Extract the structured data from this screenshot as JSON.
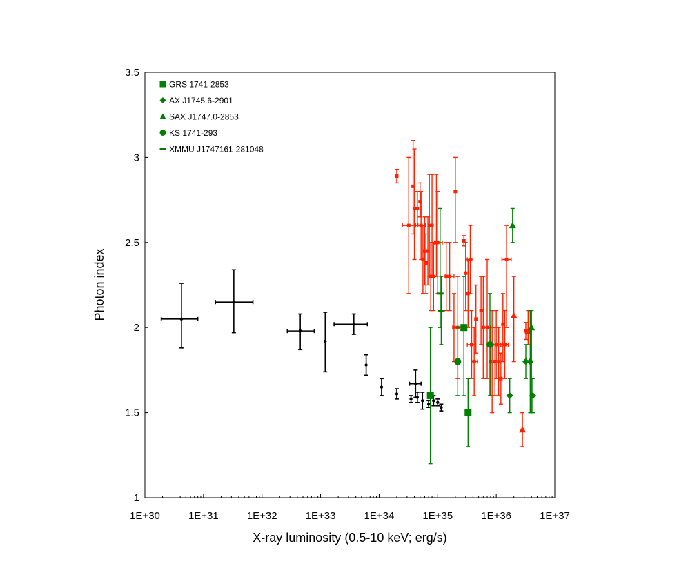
{
  "chart_data": {
    "type": "scatter",
    "title": "",
    "xlabel": "X-ray luminosity (0.5-10 keV; erg/s)",
    "ylabel": "Photon index",
    "x_scale": "log",
    "xlim": [
      1e+30,
      1e+37
    ],
    "ylim": [
      1,
      3.5
    ],
    "x_tick_labels": [
      "1E+30",
      "1E+31",
      "1E+32",
      "1E+33",
      "1E+34",
      "1E+35",
      "1E+36",
      "1E+37"
    ],
    "y_tick_labels": [
      "1",
      "1.5",
      "2",
      "2.5",
      "3",
      "3.5"
    ],
    "grid": false,
    "legend_position": "top-left",
    "colors": {
      "black": "#000000",
      "red": "#ff2200",
      "green": "#008000"
    },
    "legend": [
      {
        "label": "GRS 1741-2853",
        "marker": "square"
      },
      {
        "label": "AX J1745.6-2901",
        "marker": "diamond"
      },
      {
        "label": "SAX J1747.0-2853",
        "marker": "triangle"
      },
      {
        "label": "KS 1741-293",
        "marker": "circle"
      },
      {
        "label": "XMMU J1747161-281048",
        "marker": "dash"
      }
    ],
    "series": [
      {
        "color": "black",
        "marker": "dot",
        "points": [
          {
            "x": 4.2e+30,
            "y": 2.05,
            "xerr": [
              1.9e+30,
              8e+30
            ],
            "yerr": [
              1.88,
              2.26
            ]
          },
          {
            "x": 3.3e+31,
            "y": 2.15,
            "xerr": [
              1.6e+31,
              7e+31
            ],
            "yerr": [
              1.97,
              2.34
            ]
          },
          {
            "x": 4.5e+32,
            "y": 1.98,
            "xerr": [
              2.7e+32,
              7.8e+32
            ],
            "yerr": [
              1.87,
              2.08
            ]
          },
          {
            "x": 1.2e+33,
            "y": 1.92,
            "yerr": [
              1.74,
              2.09
            ]
          },
          {
            "x": 3.7e+33,
            "y": 2.02,
            "xerr": [
              1.7e+33,
              6.3e+33
            ],
            "yerr": [
              1.96,
              2.08
            ]
          },
          {
            "x": 6e+33,
            "y": 1.78,
            "yerr": [
              1.72,
              1.84
            ]
          },
          {
            "x": 1.1e+34,
            "y": 1.65,
            "yerr": [
              1.6,
              1.7
            ]
          },
          {
            "x": 2e+34,
            "y": 1.61,
            "yerr": [
              1.58,
              1.64
            ]
          },
          {
            "x": 3.5e+34,
            "y": 1.58,
            "yerr": [
              1.56,
              1.6
            ]
          },
          {
            "x": 4.2e+34,
            "y": 1.67,
            "xerr": [
              3.3e+34,
              5.2e+34
            ],
            "yerr": [
              1.59,
              1.75
            ]
          },
          {
            "x": 4.5e+34,
            "y": 1.59,
            "yerr": [
              1.56,
              1.62
            ]
          },
          {
            "x": 5.5e+34,
            "y": 1.57,
            "yerr": [
              1.52,
              1.62
            ]
          },
          {
            "x": 7e+34,
            "y": 1.55,
            "yerr": [
              1.53,
              1.57
            ]
          },
          {
            "x": 8.5e+34,
            "y": 1.57,
            "yerr": [
              1.54,
              1.6
            ]
          },
          {
            "x": 1e+35,
            "y": 1.56,
            "yerr": [
              1.54,
              1.58
            ]
          },
          {
            "x": 1.15e+35,
            "y": 1.53,
            "yerr": [
              1.51,
              1.55
            ]
          }
        ]
      },
      {
        "color": "red",
        "marker": "small-square",
        "points": [
          {
            "x": 2e+34,
            "y": 2.89,
            "yerr": [
              2.85,
              2.93
            ]
          },
          {
            "x": 3.2e+34,
            "y": 2.6,
            "xerr": [
              2.5e+34,
              4.2e+34
            ],
            "yerr": [
              2.2,
              3.0
            ]
          },
          {
            "x": 3.8e+34,
            "y": 2.83,
            "yerr": [
              2.55,
              3.1
            ]
          },
          {
            "x": 4e+34,
            "y": 2.7,
            "yerr": [
              2.4,
              3.05
            ]
          },
          {
            "x": 4.5e+34,
            "y": 2.7,
            "yerr": [
              2.6,
              2.8
            ]
          },
          {
            "x": 5e+34,
            "y": 2.74,
            "yerr": [
              2.65,
              2.85
            ]
          },
          {
            "x": 5.2e+34,
            "y": 2.6,
            "xerr": [
              4.6e+34,
              6.2e+34
            ],
            "yerr": [
              2.4,
              2.8
            ]
          },
          {
            "x": 5.6e+34,
            "y": 2.4,
            "yerr": [
              2.2,
              2.6
            ]
          },
          {
            "x": 6e+34,
            "y": 2.45,
            "yerr": [
              2.25,
              2.65
            ]
          },
          {
            "x": 6.3e+34,
            "y": 2.38,
            "yerr": [
              2.2,
              2.55
            ]
          },
          {
            "x": 6.8e+34,
            "y": 2.45,
            "yerr": [
              2.25,
              2.65
            ]
          },
          {
            "x": 7.2e+34,
            "y": 2.6,
            "yerr": [
              2.3,
              2.9
            ]
          },
          {
            "x": 7.6e+34,
            "y": 2.3,
            "yerr": [
              2.1,
              2.5
            ]
          },
          {
            "x": 8e+34,
            "y": 2.6,
            "yerr": [
              2.3,
              2.9
            ]
          },
          {
            "x": 8.5e+34,
            "y": 2.3,
            "yerr": [
              2.1,
              2.5
            ]
          },
          {
            "x": 9.5e+34,
            "y": 2.5,
            "yerr": [
              2.3,
              2.9
            ]
          },
          {
            "x": 1e+35,
            "y": 2.5,
            "xerr": [
              8.8e+34,
              1.2e+35
            ],
            "yerr": [
              2.2,
              2.8
            ]
          },
          {
            "x": 1.4e+35,
            "y": 2.3,
            "yerr": [
              2.1,
              2.5
            ]
          },
          {
            "x": 1.6e+35,
            "y": 2.3,
            "xerr": [
              1.35e+35,
              1.9e+35
            ],
            "yerr": [
              2.1,
              2.5
            ]
          },
          {
            "x": 1.9e+35,
            "y": 2.0,
            "yerr": [
              1.8,
              2.2
            ]
          },
          {
            "x": 2e+35,
            "y": 2.8,
            "yerr": [
              2.5,
              3.0
            ]
          },
          {
            "x": 2.2e+35,
            "y": 2.0,
            "xerr": [
              1.8e+35,
              2.6e+35
            ],
            "yerr": [
              1.7,
              2.3
            ]
          },
          {
            "x": 2.8e+35,
            "y": 2.51,
            "yerr": [
              2.48,
              2.54
            ]
          },
          {
            "x": 3e+35,
            "y": 2.32,
            "yerr": [
              2.1,
              2.5
            ]
          },
          {
            "x": 3.3e+35,
            "y": 2.2,
            "yerr": [
              2.0,
              2.4
            ]
          },
          {
            "x": 3.6e+35,
            "y": 2.4,
            "xerr": [
              3.2e+35,
              4e+35
            ],
            "yerr": [
              2.2,
              2.6
            ]
          },
          {
            "x": 3.8e+35,
            "y": 1.9,
            "xerr": [
              3.2e+35,
              4.4e+35
            ],
            "yerr": [
              1.7,
              2.1
            ]
          },
          {
            "x": 4.2e+35,
            "y": 1.8,
            "xerr": [
              3.8e+35,
              4.8e+35
            ],
            "yerr": [
              1.6,
              2.0
            ]
          },
          {
            "x": 4.5e+35,
            "y": 2.05,
            "yerr": [
              1.85,
              2.25
            ]
          },
          {
            "x": 5.5e+35,
            "y": 2.1,
            "yerr": [
              1.9,
              2.3
            ]
          },
          {
            "x": 6e+35,
            "y": 2.0,
            "yerr": [
              1.7,
              2.3
            ]
          },
          {
            "x": 7e+35,
            "y": 2.0,
            "xerr": [
              6e+35,
              8e+35
            ],
            "yerr": [
              1.7,
              2.4
            ]
          },
          {
            "x": 8e+35,
            "y": 1.8,
            "yerr": [
              1.6,
              2.0
            ]
          },
          {
            "x": 8.5e+35,
            "y": 1.9,
            "yerr": [
              1.5,
              2.1
            ]
          },
          {
            "x": 9.5e+35,
            "y": 1.8,
            "yerr": [
              1.6,
              2.0
            ]
          },
          {
            "x": 1e+36,
            "y": 1.9,
            "xerr": [
              8.5e+35,
              1.2e+36
            ],
            "yerr": [
              1.7,
              2.1
            ]
          },
          {
            "x": 1.1e+36,
            "y": 1.8,
            "yerr": [
              1.6,
              2.0
            ]
          },
          {
            "x": 1.2e+36,
            "y": 1.7,
            "yerr": [
              1.55,
              1.85
            ]
          },
          {
            "x": 1.3e+36,
            "y": 2.02,
            "yerr": [
              1.8,
              2.2
            ]
          },
          {
            "x": 1.4e+36,
            "y": 1.9,
            "xerr": [
              1.2e+36,
              1.6e+36
            ],
            "yerr": [
              1.7,
              2.1
            ]
          },
          {
            "x": 1.5e+36,
            "y": 2.4,
            "xerr": [
              1.25e+36,
              1.8e+36
            ],
            "yerr": [
              2.0,
              2.6
            ]
          },
          {
            "x": 3.2e+36,
            "y": 1.98,
            "yerr": [
              1.93,
              2.03
            ]
          }
        ]
      },
      {
        "color": "red",
        "marker": "triangle",
        "points": [
          {
            "x": 2e+36,
            "y": 2.07,
            "yerr": [
              1.8,
              2.3
            ]
          },
          {
            "x": 2.8e+36,
            "y": 1.4,
            "yerr": [
              1.3,
              1.5
            ]
          },
          {
            "x": 3.5e+36,
            "y": 1.98,
            "yerr": [
              1.9,
              2.1
            ]
          }
        ]
      },
      {
        "color": "green",
        "marker": "square",
        "label": "GRS 1741-2853",
        "points": [
          {
            "x": 7.5e+34,
            "y": 1.6,
            "yerr": [
              1.2,
              2.0
            ]
          },
          {
            "x": 2.8e+35,
            "y": 2.0,
            "yerr": [
              1.6,
              2.3
            ]
          },
          {
            "x": 3.3e+35,
            "y": 1.5,
            "yerr": [
              1.3,
              1.7
            ]
          }
        ]
      },
      {
        "color": "green",
        "marker": "diamond",
        "label": "AX J1745.6-2901",
        "points": [
          {
            "x": 1.7e+36,
            "y": 1.6,
            "yerr": [
              1.5,
              1.7
            ]
          },
          {
            "x": 3.2e+36,
            "y": 1.8,
            "yerr": [
              1.7,
              1.9
            ]
          },
          {
            "x": 3.8e+36,
            "y": 1.8,
            "yerr": [
              1.5,
              2.1
            ]
          },
          {
            "x": 4.2e+36,
            "y": 1.6,
            "yerr": [
              1.5,
              1.7
            ]
          }
        ]
      },
      {
        "color": "green",
        "marker": "triangle",
        "label": "SAX J1747.0-2853",
        "points": [
          {
            "x": 1.9e+36,
            "y": 2.6,
            "yerr": [
              2.5,
              2.7
            ]
          },
          {
            "x": 4e+36,
            "y": 2.0,
            "yerr": [
              1.5,
              2.1
            ]
          }
        ]
      },
      {
        "color": "green",
        "marker": "circle",
        "label": "KS 1741-293",
        "points": [
          {
            "x": 2.2e+35,
            "y": 1.8,
            "yerr": [
              1.6,
              2.0
            ]
          },
          {
            "x": 7.8e+35,
            "y": 1.9,
            "yerr": [
              1.6,
              2.2
            ]
          }
        ]
      },
      {
        "color": "green",
        "marker": "dash",
        "label": "XMMU J1747161-281048",
        "points": [
          {
            "x": 1.1e+35,
            "y": 2.2,
            "yerr": [
              2.0,
              2.7
            ]
          },
          {
            "x": 1.15e+35,
            "y": 2.1,
            "yerr": [
              1.9,
              2.3
            ]
          }
        ]
      }
    ]
  }
}
